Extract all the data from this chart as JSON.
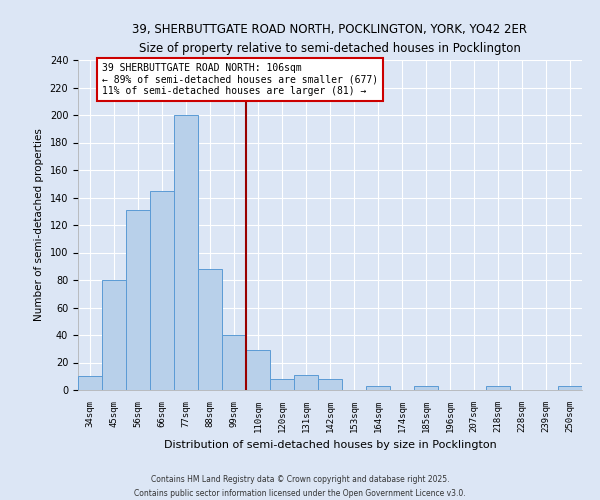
{
  "title": "39, SHERBUTTGATE ROAD NORTH, POCKLINGTON, YORK, YO42 2ER",
  "subtitle": "Size of property relative to semi-detached houses in Pocklington",
  "xlabel": "Distribution of semi-detached houses by size in Pocklington",
  "ylabel": "Number of semi-detached properties",
  "bar_labels": [
    "34sqm",
    "45sqm",
    "56sqm",
    "66sqm",
    "77sqm",
    "88sqm",
    "99sqm",
    "110sqm",
    "120sqm",
    "131sqm",
    "142sqm",
    "153sqm",
    "164sqm",
    "174sqm",
    "185sqm",
    "196sqm",
    "207sqm",
    "218sqm",
    "228sqm",
    "239sqm",
    "250sqm"
  ],
  "bar_values": [
    10,
    80,
    131,
    145,
    200,
    88,
    40,
    29,
    8,
    11,
    8,
    0,
    3,
    0,
    3,
    0,
    0,
    3,
    0,
    0,
    3
  ],
  "bar_color": "#b8d0ea",
  "bar_edge_color": "#5b9bd5",
  "vline_x_index": 6.5,
  "vline_color": "#990000",
  "annotation_title": "39 SHERBUTTGATE ROAD NORTH: 106sqm",
  "annotation_line1": "← 89% of semi-detached houses are smaller (677)",
  "annotation_line2": "11% of semi-detached houses are larger (81) →",
  "annotation_box_color": "#ffffff",
  "annotation_box_edge": "#cc0000",
  "ylim": [
    0,
    240
  ],
  "yticks": [
    0,
    20,
    40,
    60,
    80,
    100,
    120,
    140,
    160,
    180,
    200,
    220,
    240
  ],
  "background_color": "#dce6f5",
  "plot_bg_color": "#dce6f5",
  "grid_color": "#ffffff",
  "footer1": "Contains HM Land Registry data © Crown copyright and database right 2025.",
  "footer2": "Contains public sector information licensed under the Open Government Licence v3.0."
}
